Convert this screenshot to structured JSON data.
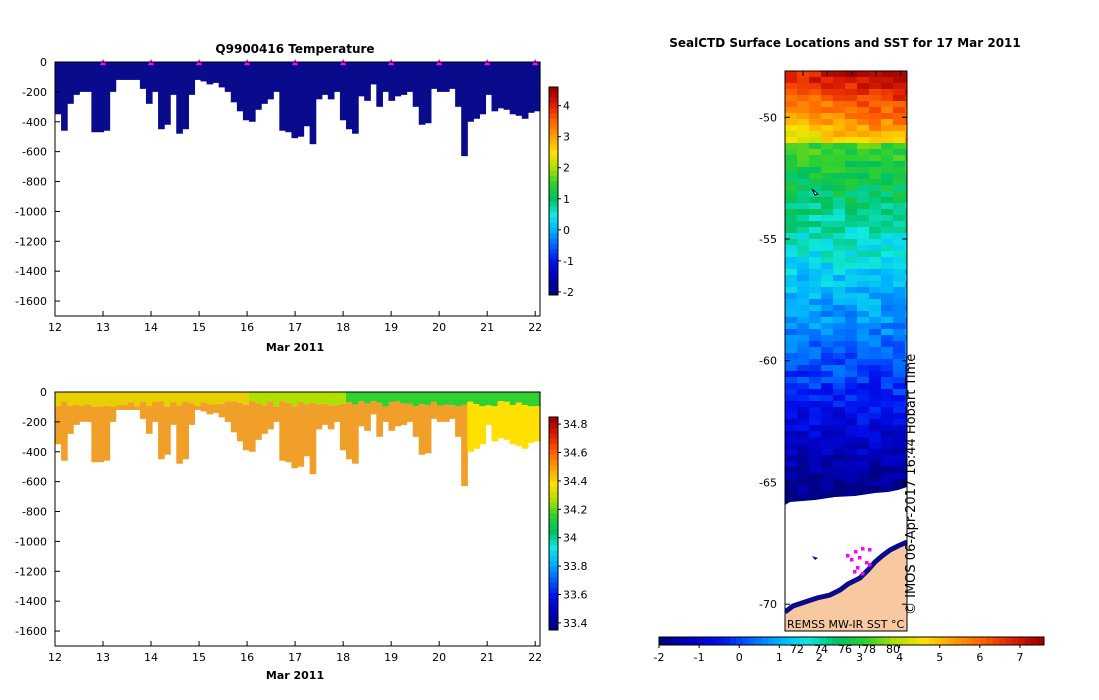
{
  "colors": {
    "jet": [
      "#000080",
      "#0000bb",
      "#0010f0",
      "#0060ff",
      "#00b0ff",
      "#10e8e0",
      "#00c060",
      "#30d030",
      "#b0e000",
      "#ffe000",
      "#ffa000",
      "#ff6000",
      "#e02000",
      "#a00000"
    ],
    "deep_blue": "#0a0a8c",
    "salinity_orange": "#f0a028",
    "land": "#f8c8a0",
    "marker": "#ff00ff"
  },
  "chart_data": [
    {
      "type": "heatmap",
      "title": "Q9900416  Temperature",
      "xlabel": "Mar 2011",
      "ylabel": "",
      "x_ticks": [
        "12",
        "13",
        "14",
        "15",
        "16",
        "17",
        "18",
        "19",
        "20",
        "21",
        "22"
      ],
      "y_ticks": [
        "0",
        "-200",
        "-400",
        "-600",
        "-800",
        "-1000",
        "-1200",
        "-1400",
        "-1600"
      ],
      "xlim": [
        12,
        22.1
      ],
      "ylim": [
        -1700,
        0
      ],
      "profile_depths": [
        -350,
        -460,
        -280,
        -220,
        -200,
        -200,
        -470,
        -470,
        -460,
        -200,
        -120,
        -120,
        -120,
        -120,
        -180,
        -280,
        -200,
        -450,
        -420,
        -220,
        -480,
        -450,
        -220,
        -120,
        -130,
        -150,
        -140,
        -170,
        -200,
        -270,
        -330,
        -390,
        -400,
        -320,
        -280,
        -250,
        -200,
        -460,
        -470,
        -510,
        -500,
        -430,
        -550,
        -250,
        -220,
        -250,
        -200,
        -390,
        -450,
        -480,
        -230,
        -260,
        -150,
        -300,
        -200,
        -260,
        -230,
        -220,
        -200,
        -300,
        -420,
        -410,
        -180,
        -200,
        -200,
        -180,
        -300,
        -630,
        -400,
        -380,
        -350,
        -220,
        -330,
        -310,
        -320,
        -350,
        -360,
        -380,
        -340,
        -330
      ],
      "colorbar": {
        "min": -2.1,
        "max": 4.6,
        "ticks": [
          "4",
          "3",
          "2",
          "1",
          "0",
          "-1",
          "-2"
        ]
      },
      "profile_markers_at": [
        13,
        14,
        15,
        16,
        17,
        18,
        19,
        20,
        21,
        22
      ]
    },
    {
      "type": "heatmap",
      "title": "",
      "xlabel": "Mar 2011",
      "ylabel": "",
      "x_ticks": [
        "12",
        "13",
        "14",
        "15",
        "16",
        "17",
        "18",
        "19",
        "20",
        "21",
        "22"
      ],
      "y_ticks": [
        "0",
        "-200",
        "-400",
        "-600",
        "-800",
        "-1000",
        "-1200",
        "-1400",
        "-1600"
      ],
      "xlim": [
        12,
        22.1
      ],
      "ylim": [
        -1700,
        0
      ],
      "colorbar": {
        "min": 33.35,
        "max": 34.85,
        "ticks": [
          "34.8",
          "34.6",
          "34.4",
          "34.2",
          "34",
          "33.8",
          "33.6",
          "33.4"
        ]
      }
    },
    {
      "type": "heatmap",
      "title": "SealCTD Surface Locations and SST for 17 Mar 2011",
      "xlabel": "",
      "ylabel": "",
      "y_ticks": [
        "-50",
        "-55",
        "-60",
        "-65",
        "-70"
      ],
      "ylim": [
        -71.1,
        -48.1
      ],
      "colorbar": {
        "min": -2,
        "max": 7.6,
        "ticks": [
          "-2",
          "-1",
          "0",
          "1",
          "2",
          "3",
          "4",
          "5",
          "6",
          "7"
        ]
      },
      "secondary_ticks": [
        "72",
        "74",
        "76",
        "78",
        "80"
      ],
      "source_label": "REMSS MW-IR SST °C",
      "credit": "© IMOS 06-Apr-2017 16:44 Hobart Time"
    }
  ]
}
